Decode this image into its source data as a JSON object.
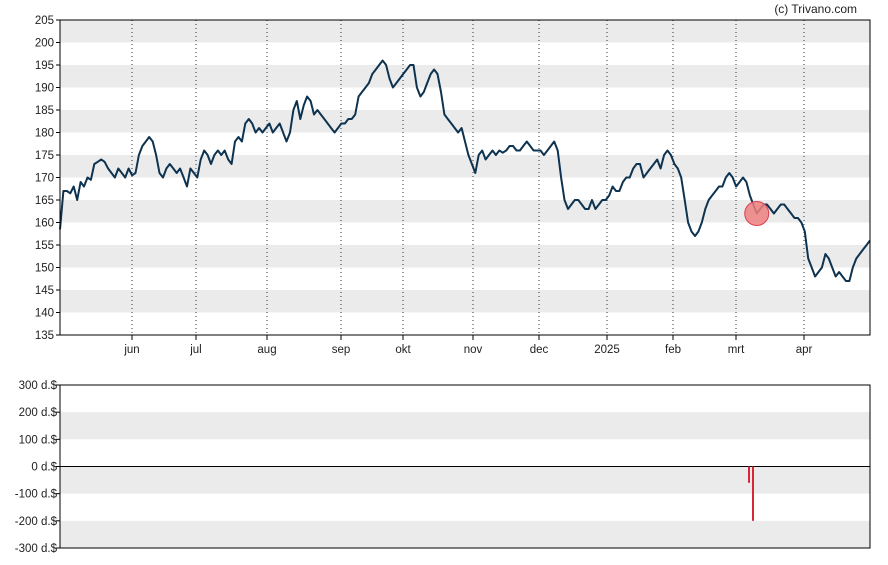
{
  "credit": "(c) Trivano.com",
  "colors": {
    "price_line": "#0d3350",
    "band": "#ebebeb",
    "insider_bar": "#d62839",
    "marker_fill": "#f08080",
    "marker_stroke": "#d94050"
  },
  "chart_data": [
    {
      "type": "line",
      "name": "price",
      "ylim": [
        135,
        205
      ],
      "y_ticks": [
        "205",
        "200",
        "195",
        "190",
        "185",
        "180",
        "175",
        "170",
        "165",
        "160",
        "155",
        "150",
        "145",
        "140",
        "135"
      ],
      "x_tick_labels": [
        "jun",
        "jul",
        "aug",
        "sep",
        "okt",
        "nov",
        "dec",
        "2025",
        "feb",
        "mrt",
        "apr"
      ],
      "grid": "dotted vertical lines at month starts, alternating horizontal bands",
      "values": [
        158.5,
        167,
        167,
        166.5,
        168,
        165,
        169,
        168,
        170,
        169.5,
        173,
        173.5,
        174,
        173.5,
        172,
        171,
        170,
        172,
        171,
        170,
        172,
        170.5,
        171,
        175,
        177,
        178,
        179,
        178,
        175,
        171,
        170,
        172,
        173,
        172,
        171,
        172,
        170,
        168,
        172,
        171,
        170,
        174,
        176,
        175,
        173,
        175,
        176,
        175,
        176,
        174,
        173,
        178,
        179,
        178,
        182,
        183,
        182,
        180,
        181,
        180,
        181,
        182,
        180,
        181,
        182,
        180,
        178,
        180,
        185,
        187,
        183,
        186,
        188,
        187,
        184,
        185,
        184,
        183,
        182,
        181,
        180,
        181,
        182,
        182,
        183,
        183,
        184,
        188,
        189,
        190,
        191,
        193,
        194,
        195,
        196,
        195,
        192,
        190,
        191,
        192,
        193,
        194,
        195,
        195,
        190,
        188,
        189,
        191,
        193,
        194,
        193,
        189,
        184,
        183,
        182,
        181,
        180,
        181,
        178,
        175,
        173,
        171,
        175,
        176,
        174,
        175,
        176,
        175,
        176,
        175.5,
        176,
        177,
        177,
        176,
        176,
        177,
        178,
        177,
        176,
        176,
        176,
        175,
        176,
        177,
        178,
        176,
        170,
        165,
        163,
        164,
        165,
        165,
        164,
        163,
        163,
        165,
        163,
        164,
        165,
        165,
        166,
        168,
        167,
        167,
        169,
        170,
        170,
        172,
        173,
        173,
        170,
        171,
        172,
        173,
        174,
        172,
        175,
        176,
        175,
        173,
        172,
        170,
        165,
        160,
        158,
        157,
        158,
        160,
        163,
        165,
        166,
        167,
        168,
        168,
        170,
        171,
        170,
        168,
        169,
        170,
        169,
        166,
        164,
        162,
        163,
        164,
        164,
        163,
        162,
        163,
        164,
        164,
        163,
        162,
        161,
        161,
        160,
        158,
        152,
        150,
        148,
        149,
        150,
        153,
        152,
        150,
        148,
        149,
        148,
        147,
        147,
        150,
        152,
        153,
        154,
        155,
        156
      ]
    },
    {
      "type": "bar",
      "name": "insider",
      "ylim": [
        -300,
        300
      ],
      "y_ticks": [
        "300 d.$",
        "200 d.$",
        "100 d.$",
        "0 d.$",
        "-100 d.$",
        "-200 d.$",
        "-300 d.$"
      ],
      "values": [
        {
          "x_month": "mrt",
          "value": -60
        },
        {
          "x_month": "mrt",
          "value": -200
        }
      ]
    }
  ]
}
